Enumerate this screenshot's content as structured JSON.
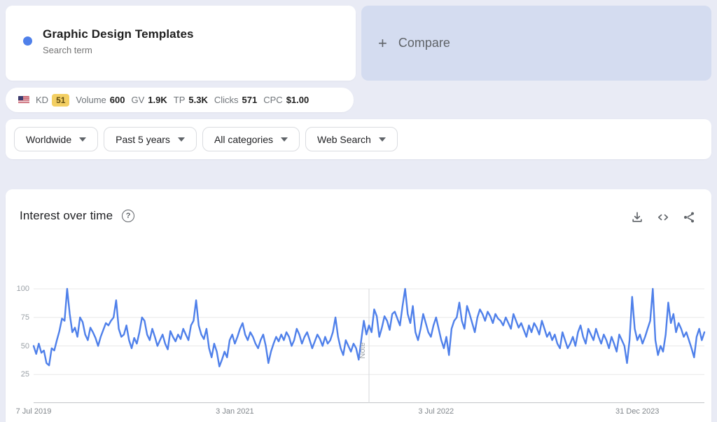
{
  "term_card": {
    "title": "Graphic Design Templates",
    "subtitle": "Search term",
    "dot_color": "#4f80ea"
  },
  "compare_card": {
    "plus": "+",
    "label": "Compare"
  },
  "metrics_bar": {
    "flag": "us-flag",
    "items": [
      {
        "label": "KD",
        "value": "51"
      },
      {
        "label": "Volume",
        "value": "600"
      },
      {
        "label": "GV",
        "value": "1.9K"
      },
      {
        "label": "TP",
        "value": "5.3K"
      },
      {
        "label": "Clicks",
        "value": "571"
      },
      {
        "label": "CPC",
        "value": "$1.00"
      }
    ]
  },
  "filters": [
    {
      "label": "Worldwide"
    },
    {
      "label": "Past 5 years"
    },
    {
      "label": "All categories"
    },
    {
      "label": "Web Search"
    }
  ],
  "section": {
    "title": "Interest over time",
    "help": "?",
    "actions": [
      "download",
      "embed-code",
      "share"
    ]
  },
  "chart_data": {
    "type": "line",
    "title": "Interest over time",
    "series_name": "Graphic Design Templates",
    "line_color": "#4f80ea",
    "grid": true,
    "ylim": [
      0,
      100
    ],
    "y_ticks": [
      25,
      50,
      75,
      100
    ],
    "x_ticks": [
      {
        "index": 0,
        "label": "7 Jul 2019"
      },
      {
        "index": 78,
        "label": "3 Jan 2021"
      },
      {
        "index": 156,
        "label": "3 Jul 2022"
      },
      {
        "index": 234,
        "label": "31 Dec 2023"
      }
    ],
    "note_marker": {
      "index": 130,
      "label": "Note"
    },
    "values": [
      50,
      43,
      52,
      44,
      46,
      35,
      33,
      48,
      46,
      55,
      63,
      74,
      72,
      100,
      78,
      62,
      66,
      58,
      75,
      71,
      60,
      55,
      66,
      62,
      57,
      50,
      58,
      64,
      70,
      68,
      72,
      75,
      90,
      65,
      58,
      60,
      68,
      55,
      48,
      57,
      52,
      62,
      75,
      72,
      60,
      55,
      65,
      58,
      50,
      55,
      60,
      52,
      47,
      63,
      58,
      54,
      60,
      56,
      65,
      60,
      55,
      68,
      72,
      90,
      68,
      60,
      56,
      65,
      48,
      40,
      52,
      45,
      32,
      38,
      45,
      40,
      55,
      60,
      52,
      58,
      65,
      70,
      60,
      55,
      62,
      58,
      52,
      48,
      55,
      60,
      50,
      35,
      45,
      52,
      58,
      54,
      60,
      55,
      62,
      58,
      50,
      55,
      65,
      60,
      52,
      58,
      62,
      55,
      48,
      54,
      60,
      56,
      50,
      58,
      52,
      55,
      62,
      75,
      58,
      48,
      42,
      55,
      50,
      45,
      52,
      48,
      38,
      55,
      72,
      60,
      68,
      62,
      82,
      76,
      58,
      66,
      76,
      72,
      64,
      78,
      80,
      74,
      68,
      85,
      100,
      78,
      70,
      85,
      62,
      55,
      65,
      78,
      70,
      62,
      58,
      68,
      75,
      65,
      55,
      48,
      58,
      42,
      65,
      72,
      75,
      88,
      72,
      65,
      85,
      78,
      70,
      62,
      75,
      82,
      78,
      72,
      80,
      76,
      70,
      78,
      74,
      72,
      68,
      75,
      70,
      65,
      78,
      72,
      66,
      70,
      64,
      58,
      68,
      62,
      70,
      66,
      60,
      72,
      65,
      58,
      62,
      55,
      60,
      52,
      48,
      62,
      55,
      48,
      52,
      58,
      50,
      62,
      68,
      58,
      52,
      65,
      60,
      55,
      65,
      58,
      52,
      60,
      55,
      48,
      58,
      52,
      45,
      60,
      55,
      50,
      35,
      55,
      93,
      65,
      55,
      60,
      52,
      58,
      65,
      72,
      100,
      55,
      42,
      50,
      45,
      60,
      88,
      70,
      78,
      62,
      70,
      65,
      58,
      62,
      55,
      48,
      40,
      58,
      65,
      55,
      62
    ]
  }
}
